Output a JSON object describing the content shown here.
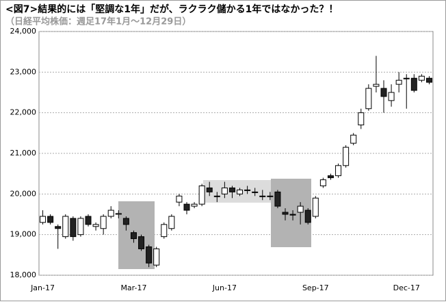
{
  "chart_data": {
    "type": "candlestick",
    "title": "<図7>結果的には「堅調な1年」だが、ラクラク儲かる1年ではなかった？！",
    "subtitle": "（日経平均株価：週足17年1月～12月29日）",
    "categories": [
      "Jan-17",
      null,
      null,
      null,
      null,
      null,
      null,
      null,
      null,
      null,
      null,
      null,
      "Mar-17",
      null,
      null,
      null,
      null,
      null,
      null,
      null,
      null,
      null,
      null,
      null,
      "Jun-17",
      null,
      null,
      null,
      null,
      null,
      null,
      null,
      null,
      null,
      null,
      null,
      "Sep-17",
      null,
      null,
      null,
      null,
      null,
      null,
      null,
      null,
      null,
      null,
      null,
      "Dec-17",
      null,
      null,
      null
    ],
    "open": [
      19300,
      19450,
      19200,
      18950,
      19400,
      19000,
      19450,
      19200,
      19150,
      19450,
      19500,
      19400,
      19050,
      18950,
      18700,
      18250,
      18950,
      19150,
      19800,
      19750,
      19700,
      19750,
      20150,
      19950,
      20000,
      20150,
      20000,
      20100,
      20050,
      19950,
      19950,
      20050,
      19550,
      19500,
      19550,
      19600,
      19450,
      20200,
      20450,
      20450,
      20700,
      21250,
      21700,
      22100,
      22650,
      22600,
      22300,
      22700,
      22850,
      22850,
      22800,
      22850
    ],
    "high": [
      19600,
      19500,
      19250,
      19500,
      19450,
      19450,
      19500,
      19300,
      19500,
      19700,
      19600,
      19450,
      19100,
      19000,
      18750,
      18700,
      19300,
      19500,
      20000,
      19800,
      19800,
      20250,
      20300,
      20050,
      20300,
      20200,
      20150,
      20200,
      20150,
      20100,
      20050,
      20100,
      19650,
      19600,
      19800,
      19650,
      19950,
      20400,
      20500,
      20750,
      21200,
      21500,
      22100,
      22700,
      23400,
      22800,
      22700,
      23000,
      22950,
      22950,
      22950,
      22900
    ],
    "low": [
      19250,
      19250,
      18650,
      18900,
      18850,
      18950,
      19200,
      19100,
      19000,
      19400,
      19400,
      19100,
      18800,
      18600,
      18200,
      18200,
      18900,
      19100,
      19700,
      19500,
      19650,
      19700,
      19950,
      19800,
      19900,
      19900,
      19950,
      20000,
      19950,
      19850,
      19850,
      19650,
      19350,
      19350,
      19250,
      19250,
      19400,
      20150,
      20350,
      20400,
      20650,
      21200,
      21600,
      22050,
      22500,
      22000,
      22150,
      22500,
      22100,
      22500,
      22750,
      22700
    ],
    "close": [
      19450,
      19300,
      19150,
      19450,
      18950,
      19400,
      19250,
      19250,
      19450,
      19600,
      19520,
      19250,
      18900,
      18650,
      18300,
      18650,
      19250,
      19450,
      19950,
      19600,
      19750,
      20200,
      20050,
      19950,
      20150,
      20050,
      20100,
      20100,
      20050,
      19950,
      19950,
      19700,
      19500,
      19480,
      19700,
      19300,
      19900,
      20350,
      20400,
      20700,
      21150,
      21450,
      22000,
      22600,
      22700,
      22400,
      22500,
      22800,
      22850,
      22550,
      22900,
      22750
    ],
    "up_color": "#ffffff",
    "down_color": "#222222",
    "ylim": [
      18000,
      24000
    ],
    "yticks": [
      {
        "value": 18000,
        "label": "18,000"
      },
      {
        "value": 19000,
        "label": "19,000"
      },
      {
        "value": 20000,
        "label": "20,000"
      },
      {
        "value": 21000,
        "label": "21,000"
      },
      {
        "value": 22000,
        "label": "22,000"
      },
      {
        "value": 23000,
        "label": "23,000"
      },
      {
        "value": 24000,
        "label": "24,000"
      }
    ],
    "grid": true
  }
}
